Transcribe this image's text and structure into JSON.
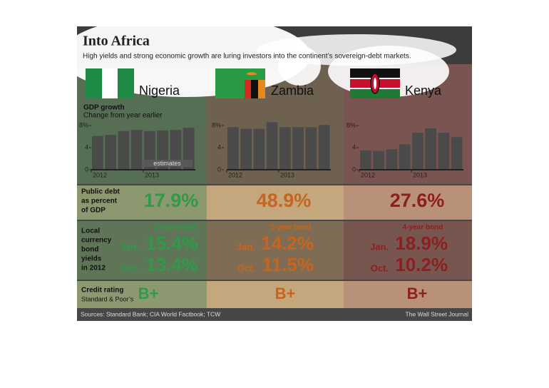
{
  "title": "Into Africa",
  "subtitle": "High yields and strong economic growth are luring investors into the continent’s sovereign-debt markets.",
  "gdp_label": "GDP growth",
  "gdp_sublabel": "Change from year earlier",
  "debt_label": [
    "Public debt",
    "as percent",
    "of GDP"
  ],
  "yields_label": [
    "Local",
    "currency",
    "bond",
    "yields",
    "in 2012"
  ],
  "rating_label": "Credit rating",
  "rating_sublabel": "Standard & Poor’s",
  "countries": [
    {
      "name": "Nigeria",
      "color": "#2f9a48",
      "public_debt": "17.9%",
      "bond_term": "5-year bond",
      "jan_label": "Jan.",
      "jan_yield": "15.4%",
      "oct_label": "Oct.",
      "oct_yield": "13.4%",
      "rating": "B+"
    },
    {
      "name": "Zambia",
      "color": "#c8641e",
      "public_debt": "48.9%",
      "bond_term": "5-year bond",
      "jan_label": "Jan.",
      "jan_yield": "14.2%",
      "oct_label": "Oct.",
      "oct_yield": "11.5%",
      "rating": "B+"
    },
    {
      "name": "Kenya",
      "color": "#8c1f1f",
      "public_debt": "27.6%",
      "bond_term": "4-year bond",
      "jan_label": "Jan.",
      "jan_yield": "18.9%",
      "oct_label": "Oct.",
      "oct_yield": "10.2%",
      "rating": "B+"
    }
  ],
  "chart_data": [
    {
      "type": "bar",
      "categories": [
        "2012",
        null,
        null,
        null,
        "2013",
        null,
        null,
        null
      ],
      "values": [
        6.1,
        6.3,
        7.0,
        7.2,
        7.0,
        7.1,
        7.2,
        7.6
      ],
      "color": "#4a4a4a",
      "ylim": [
        0,
        9
      ],
      "yticks": [
        0,
        4,
        {
          "value": 8,
          "label": "8%"
        }
      ],
      "annotation": "estimates"
    },
    {
      "type": "bar",
      "categories": [
        "2012",
        null,
        null,
        null,
        "2013",
        null,
        null,
        null
      ],
      "values": [
        7.7,
        7.4,
        7.4,
        8.6,
        7.7,
        7.7,
        7.7,
        8.1
      ],
      "color": "#4a4a4a",
      "ylim": [
        0,
        9
      ],
      "yticks": [
        0,
        4,
        {
          "value": 8,
          "label": "8%"
        }
      ]
    },
    {
      "type": "bar",
      "categories": [
        "2012",
        null,
        null,
        null,
        "2013",
        null,
        null,
        null
      ],
      "values": [
        3.5,
        3.4,
        3.7,
        4.6,
        6.7,
        7.5,
        6.7,
        5.9
      ],
      "color": "#4a4a4a",
      "ylim": [
        0,
        9
      ],
      "yticks": [
        0,
        4,
        {
          "value": 8,
          "label": "8%"
        }
      ]
    }
  ],
  "source": "Sources: Standard Bank; CIA World Factbook; TCW",
  "credit": "The Wall Street Journal"
}
